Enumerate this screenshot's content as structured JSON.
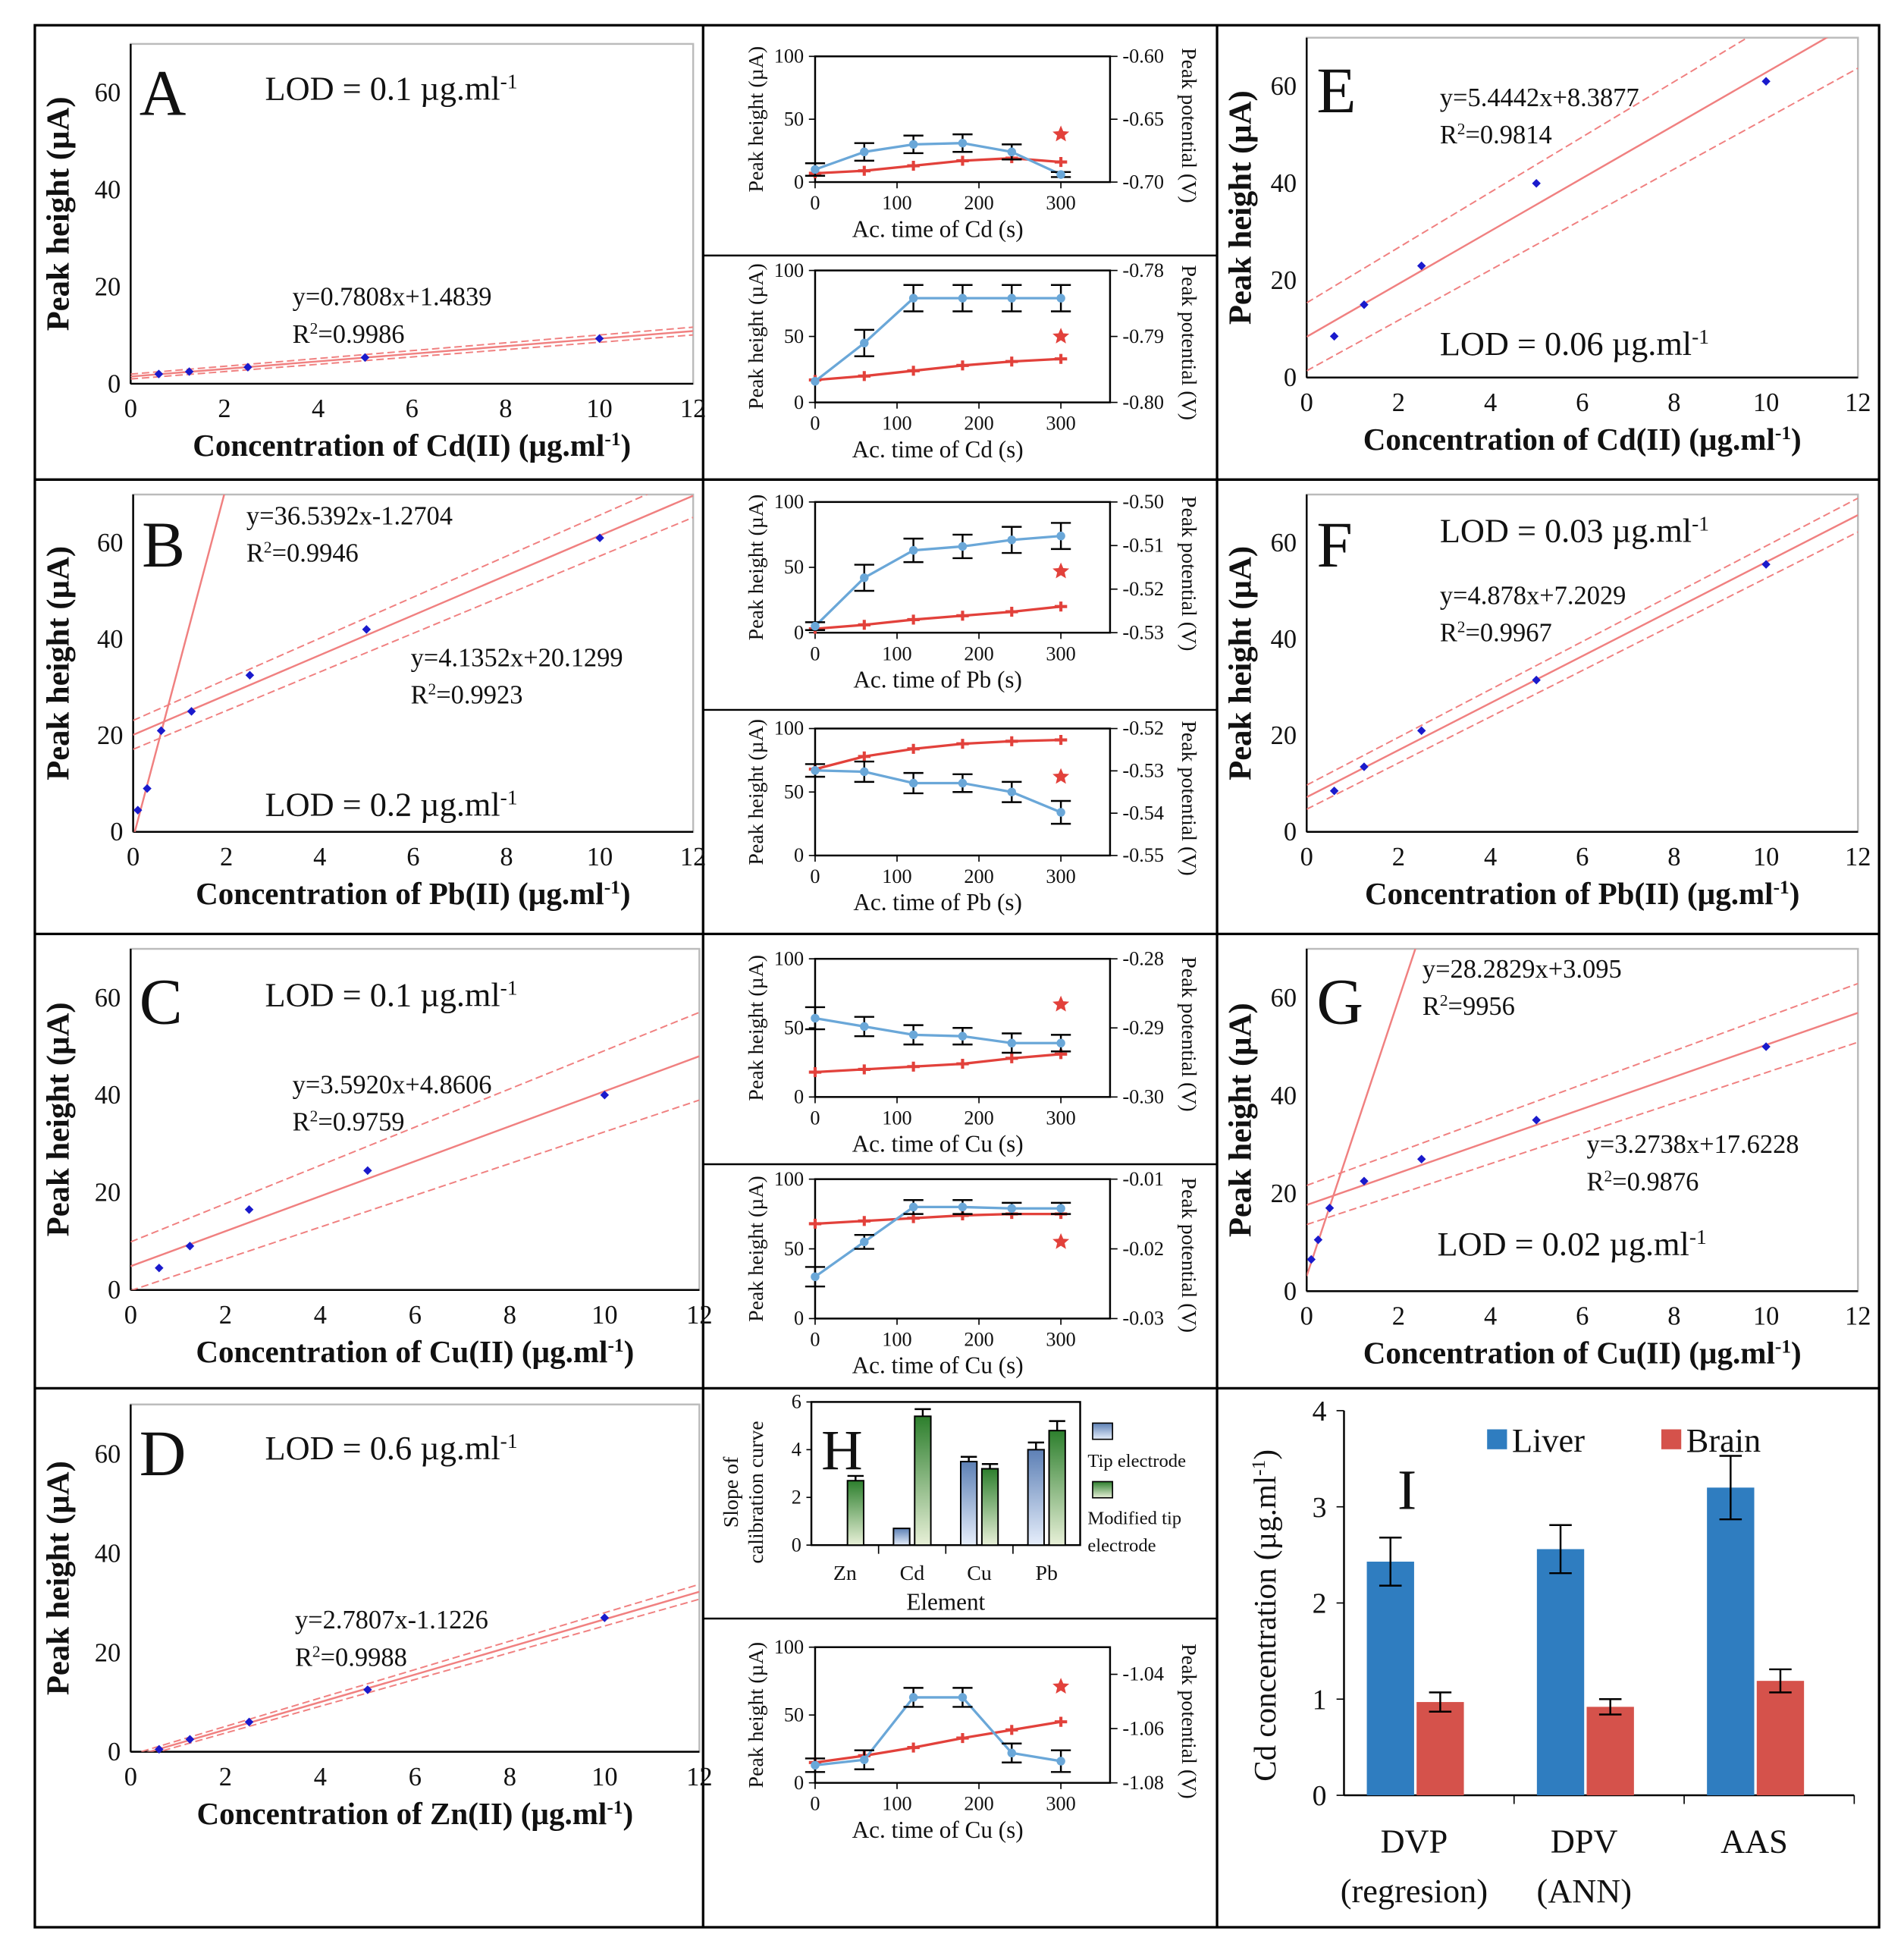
{
  "chart_data": [
    {
      "letter": "A",
      "type": "scatter",
      "xlabel": {
        "pre": "Concentration of Cd(II) (µg.ml",
        "sup": "-1",
        "post": ")"
      },
      "ylabel": "Peak height (µA)",
      "xlim": [
        0,
        12
      ],
      "ylim": [
        0,
        70
      ],
      "xticks": [
        0,
        2,
        4,
        6,
        8,
        10,
        12
      ],
      "yticks": [
        0,
        20,
        40,
        60
      ],
      "points": {
        "x": [
          0.6,
          1.25,
          2.5,
          5,
          10
        ],
        "y": [
          2,
          2.5,
          3.4,
          5.4,
          9.3
        ]
      },
      "fits": [
        {
          "eq": "y=0.7808x+1.4839",
          "r2": "=0.9986",
          "slope": 0.7808,
          "intercept": 1.4839,
          "xrange": [
            0,
            12
          ],
          "band": [
            0.5,
            0.8
          ]
        }
      ],
      "lod": {
        "text": "LOD = 0.1 µg.ml",
        "sup": "-1"
      }
    },
    {
      "letter": "B",
      "type": "scatter",
      "xlabel": {
        "pre": "Concentration of Pb(II) (µg.ml",
        "sup": "-1",
        "post": ")"
      },
      "ylabel": "Peak height (µA)",
      "xlim": [
        0,
        12
      ],
      "ylim": [
        0,
        70
      ],
      "xticks": [
        0,
        2,
        4,
        6,
        8,
        10,
        12
      ],
      "yticks": [
        0,
        20,
        40,
        60
      ],
      "points": {
        "x": [
          0.1,
          0.3,
          0.6,
          1.25,
          2.5,
          5,
          10
        ],
        "y": [
          4.5,
          9,
          21,
          25,
          32.5,
          42,
          61
        ]
      },
      "fits": [
        {
          "eq": "y=36.5392x-1.2704",
          "r2": "=0.9946",
          "slope": 36.5392,
          "intercept": -1.2704,
          "xrange": [
            0,
            2.2
          ],
          "band": null
        },
        {
          "eq": "y=4.1352x+20.1299",
          "r2": "=0.9923",
          "slope": 4.1352,
          "intercept": 20.1299,
          "xrange": [
            0,
            12
          ],
          "band": [
            3,
            4.5
          ]
        }
      ],
      "lod": {
        "text": "LOD = 0.2 µg.ml",
        "sup": "-1"
      }
    },
    {
      "letter": "C",
      "type": "scatter",
      "xlabel": {
        "pre": "Concentration of Cu(II) (µg.ml",
        "sup": "-1",
        "post": ")"
      },
      "ylabel": "Peak height (µA)",
      "xlim": [
        0,
        12
      ],
      "ylim": [
        0,
        70
      ],
      "xticks": [
        0,
        2,
        4,
        6,
        8,
        10,
        12
      ],
      "yticks": [
        0,
        20,
        40,
        60
      ],
      "points": {
        "x": [
          0.6,
          1.25,
          2.5,
          5,
          10
        ],
        "y": [
          4.5,
          9,
          16.5,
          24.5,
          40
        ]
      },
      "fits": [
        {
          "eq": "y=3.5920x+4.8606",
          "r2": "=0.9759",
          "slope": 3.592,
          "intercept": 4.8606,
          "xrange": [
            0,
            12
          ],
          "band": [
            5,
            9
          ]
        }
      ],
      "lod": {
        "text": "LOD = 0.1 µg.ml",
        "sup": "-1"
      }
    },
    {
      "letter": "D",
      "type": "scatter",
      "xlabel": {
        "pre": "Concentration of Zn(II) (µg.ml",
        "sup": "-1",
        "post": ")"
      },
      "ylabel": "Peak height (µA)",
      "xlim": [
        0,
        12
      ],
      "ylim": [
        0,
        70
      ],
      "xticks": [
        0,
        2,
        4,
        6,
        8,
        10,
        12
      ],
      "yticks": [
        0,
        20,
        40,
        60
      ],
      "points": {
        "x": [
          0.6,
          1.25,
          2.5,
          5,
          10
        ],
        "y": [
          0.5,
          2.5,
          6,
          12.5,
          27
        ]
      },
      "fits": [
        {
          "eq": "y=2.7807x-1.1226",
          "r2": "=0.9988",
          "slope": 2.7807,
          "intercept": -1.1226,
          "xrange": [
            0,
            12
          ],
          "band": [
            0.5,
            1.5
          ]
        }
      ],
      "lod": {
        "text": "LOD = 0.6 µg.ml",
        "sup": "-1"
      }
    },
    {
      "letter": "E",
      "type": "scatter",
      "xlabel": {
        "pre": "Concentration of Cd(II) (µg.ml",
        "sup": "-1",
        "post": ")"
      },
      "ylabel": "Peak height (µA)",
      "xlim": [
        0,
        12
      ],
      "ylim": [
        0,
        70
      ],
      "xticks": [
        0,
        2,
        4,
        6,
        8,
        10,
        12
      ],
      "yticks": [
        0,
        20,
        40,
        60
      ],
      "points": {
        "x": [
          0.6,
          1.25,
          2.5,
          5,
          10
        ],
        "y": [
          8.5,
          15,
          23,
          40,
          61
        ]
      },
      "fits": [
        {
          "eq": "y=5.4442x+8.3877",
          "r2": "=0.9814",
          "slope": 5.4442,
          "intercept": 8.3877,
          "xrange": [
            0,
            12
          ],
          "band": [
            7,
            10
          ]
        }
      ],
      "lod": {
        "text": "LOD = 0.06 µg.ml",
        "sup": "-1"
      }
    },
    {
      "letter": "F",
      "type": "scatter",
      "xlabel": {
        "pre": "Concentration of Pb(II) (µg.ml",
        "sup": "-1",
        "post": ")"
      },
      "ylabel": "Peak height (µA)",
      "xlim": [
        0,
        12
      ],
      "ylim": [
        0,
        70
      ],
      "xticks": [
        0,
        2,
        4,
        6,
        8,
        10,
        12
      ],
      "yticks": [
        0,
        20,
        40,
        60
      ],
      "points": {
        "x": [
          0.6,
          1.25,
          2.5,
          5,
          10
        ],
        "y": [
          8.5,
          13.5,
          21,
          31.5,
          55.5
        ]
      },
      "fits": [
        {
          "eq": "y=4.878x+7.2029",
          "r2": "=0.9967",
          "slope": 4.878,
          "intercept": 7.2029,
          "xrange": [
            0,
            12
          ],
          "band": [
            2.5,
            3.5
          ]
        }
      ],
      "lod": {
        "text": "LOD = 0.03 µg.ml",
        "sup": "-1"
      }
    },
    {
      "letter": "G",
      "type": "scatter",
      "xlabel": {
        "pre": "Concentration of Cu(II) (µg.ml",
        "sup": "-1",
        "post": ")"
      },
      "ylabel": "Peak height (µA)",
      "xlim": [
        0,
        12
      ],
      "ylim": [
        0,
        70
      ],
      "xticks": [
        0,
        2,
        4,
        6,
        8,
        10,
        12
      ],
      "yticks": [
        0,
        20,
        40,
        60
      ],
      "points": {
        "x": [
          0.1,
          0.25,
          0.5,
          1.25,
          2.5,
          5,
          10
        ],
        "y": [
          6.5,
          10.5,
          17,
          22.5,
          27,
          35,
          50
        ]
      },
      "fits": [
        {
          "eq": "y=28.2829x+3.095",
          "r2": "=9956",
          "slope": 28.2829,
          "intercept": 3.095,
          "xrange": [
            0,
            2.5
          ],
          "band": null
        },
        {
          "eq": "y=3.2738x+17.6228",
          "r2": "=0.9876",
          "slope": 3.2738,
          "intercept": 17.6228,
          "xrange": [
            0,
            12
          ],
          "band": [
            4,
            6
          ]
        }
      ],
      "lod": {
        "text": "LOD = 0.02 µg.ml",
        "sup": "-1"
      }
    },
    {
      "type": "line",
      "name": "cd-accumulation-1",
      "xlabel": "Ac. time of Cd (s)",
      "ylabel": "Peak height (µA)",
      "y2label": "Peak potential (V)",
      "xlim": [
        0,
        360
      ],
      "ylim": [
        0,
        100
      ],
      "y2lim": [
        -0.7,
        -0.6
      ],
      "xticks": [
        0,
        100,
        200,
        300
      ],
      "yticks": [
        0,
        50,
        100
      ],
      "y2ticks": [
        "-0.60",
        "-0.65",
        "-0.70"
      ],
      "x": [
        0,
        60,
        120,
        180,
        240,
        300
      ],
      "height": {
        "values": [
          10,
          24,
          30,
          31,
          24,
          6
        ],
        "err": [
          5,
          7,
          7,
          7,
          6,
          2
        ]
      },
      "potential": {
        "values": [
          -0.693,
          -0.691,
          -0.687,
          -0.683,
          -0.681,
          -0.684
        ]
      },
      "star": {
        "x": 300,
        "y": 38
      }
    },
    {
      "type": "line",
      "name": "cd-accumulation-2",
      "xlabel": "Ac. time of Cd (s)",
      "ylabel": "Peak height (µA)",
      "y2label": "Peak potential (V)",
      "xlim": [
        0,
        360
      ],
      "ylim": [
        0,
        100
      ],
      "y2lim": [
        -0.8,
        -0.78
      ],
      "xticks": [
        0,
        100,
        200,
        300
      ],
      "yticks": [
        0,
        50,
        100
      ],
      "y2ticks": [
        "-0.78",
        "-0.79",
        "-0.80"
      ],
      "x": [
        0,
        60,
        120,
        180,
        240,
        300
      ],
      "height": {
        "values": [
          16,
          45,
          79,
          79,
          79,
          79
        ],
        "err": [
          0,
          10,
          10,
          10,
          10,
          10
        ]
      },
      "potential": {
        "values": [
          -0.7966,
          -0.796,
          -0.7952,
          -0.7944,
          -0.7938,
          -0.7934
        ]
      },
      "star": {
        "x": 300,
        "y": 50
      }
    },
    {
      "type": "line",
      "name": "pb-accumulation-1",
      "xlabel": "Ac. time of Pb (s)",
      "ylabel": "Peak height (µA)",
      "y2label": "Peak potential (V)",
      "xlim": [
        0,
        360
      ],
      "ylim": [
        0,
        100
      ],
      "y2lim": [
        -0.53,
        -0.5
      ],
      "xticks": [
        0,
        100,
        200,
        300
      ],
      "yticks": [
        0,
        50,
        100
      ],
      "y2ticks": [
        "-0.50",
        "-0.51",
        "-0.52",
        "-0.53"
      ],
      "x": [
        0,
        60,
        120,
        180,
        240,
        300
      ],
      "height": {
        "values": [
          5,
          42,
          63,
          66,
          71,
          74
        ],
        "err": [
          3,
          10,
          9,
          9,
          10,
          10
        ]
      },
      "potential": {
        "values": [
          -0.5291,
          -0.5282,
          -0.527,
          -0.5261,
          -0.5252,
          -0.524
        ]
      },
      "star": {
        "x": 300,
        "y": 47
      }
    },
    {
      "type": "line",
      "name": "pb-accumulation-2",
      "xlabel": "Ac. time of Pb (s)",
      "ylabel": "Peak height (µA)",
      "y2label": "Peak potential (V)",
      "xlim": [
        0,
        360
      ],
      "ylim": [
        0,
        100
      ],
      "y2lim": [
        -0.55,
        -0.52
      ],
      "xticks": [
        0,
        100,
        200,
        300
      ],
      "yticks": [
        0,
        50,
        100
      ],
      "y2ticks": [
        "-0.52",
        "-0.53",
        "-0.54",
        "-0.55"
      ],
      "x": [
        0,
        60,
        120,
        180,
        240,
        300
      ],
      "height": {
        "values": [
          67,
          66,
          57,
          57,
          50,
          34
        ],
        "err": [
          5,
          8,
          8,
          7,
          8,
          9
        ]
      },
      "potential": {
        "values": [
          -0.5296,
          -0.5266,
          -0.5248,
          -0.5236,
          -0.523,
          -0.5227
        ]
      },
      "star": {
        "x": 300,
        "y": 62
      }
    },
    {
      "type": "line",
      "name": "cu-accumulation-1",
      "xlabel": "Ac. time of Cu (s)",
      "ylabel": "Peak height (µA)",
      "y2label": "Peak potential (V)",
      "xlim": [
        0,
        360
      ],
      "ylim": [
        0,
        100
      ],
      "y2lim": [
        -0.3,
        -0.28
      ],
      "xticks": [
        0,
        100,
        200,
        300
      ],
      "yticks": [
        0,
        50,
        100
      ],
      "y2ticks": [
        "-0.28",
        "-0.29",
        "-0.30"
      ],
      "x": [
        0,
        60,
        120,
        180,
        240,
        300
      ],
      "height": {
        "values": [
          57,
          51,
          45,
          44,
          39,
          39
        ],
        "err": [
          8,
          7,
          7,
          6,
          7,
          6
        ]
      },
      "potential": {
        "values": [
          -0.2964,
          -0.296,
          -0.2956,
          -0.2952,
          -0.2944,
          -0.2938
        ]
      },
      "star": {
        "x": 300,
        "y": 67
      }
    },
    {
      "type": "line",
      "name": "cu-accumulation-2",
      "xlabel": "Ac. time of Cu (s)",
      "ylabel": "Peak height (µA)",
      "y2label": "Peak potential (V)",
      "xlim": [
        0,
        360
      ],
      "ylim": [
        0,
        100
      ],
      "y2lim": [
        -0.03,
        -0.01
      ],
      "xticks": [
        0,
        100,
        200,
        300
      ],
      "yticks": [
        0,
        50,
        100
      ],
      "y2ticks": [
        "-0.01",
        "-0.02",
        "-0.03"
      ],
      "x": [
        0,
        60,
        120,
        180,
        240,
        300
      ],
      "height": {
        "values": [
          30,
          55,
          80,
          80,
          79,
          79
        ],
        "err": [
          7,
          5,
          5,
          5,
          4,
          4
        ]
      },
      "potential": {
        "values": [
          -0.0164,
          -0.016,
          -0.0156,
          -0.0152,
          -0.015,
          -0.015
        ]
      },
      "star": {
        "x": 300,
        "y": 55
      }
    },
    {
      "type": "line",
      "name": "zn-accumulation",
      "xlabel": "Ac. time of Cu (s)",
      "ylabel": "Peak height (µA)",
      "y2label": "Peak potential (V)",
      "xlim": [
        0,
        360
      ],
      "ylim": [
        0,
        100
      ],
      "y2lim": [
        -1.08,
        -1.03
      ],
      "xticks": [
        0,
        100,
        200,
        300
      ],
      "yticks": [
        0,
        50,
        100
      ],
      "y2ticks": [
        "-1.04",
        "-1.06",
        "-1.08"
      ],
      "x": [
        0,
        60,
        120,
        180,
        240,
        300
      ],
      "height": {
        "values": [
          13,
          17,
          63,
          63,
          22,
          16
        ],
        "err": [
          5,
          7,
          7,
          7,
          7,
          8
        ]
      },
      "potential": {
        "values": [
          -1.0725,
          -1.07,
          -1.067,
          -1.0635,
          -1.0605,
          -1.0575
        ]
      },
      "star": {
        "x": 300,
        "y": 71
      }
    },
    {
      "letter": "H",
      "type": "bar",
      "xlabel": "Element",
      "ylabel": [
        "Slope of",
        "calibration curve"
      ],
      "ylim": [
        0,
        6
      ],
      "yticks": [
        0,
        2,
        4,
        6
      ],
      "categories": [
        "Zn",
        "Cd",
        "Cu",
        "Pb"
      ],
      "series": [
        {
          "name": "Tip electrode",
          "values": [
            0,
            0.7,
            3.5,
            4.0
          ],
          "err": [
            0,
            0,
            0.2,
            0.3
          ]
        },
        {
          "name": "Modified  tip electrode",
          "values": [
            2.7,
            5.4,
            3.2,
            4.8
          ],
          "err": [
            0.2,
            0.3,
            0.2,
            0.4
          ]
        }
      ]
    },
    {
      "letter": "I",
      "type": "bar",
      "ylabel": {
        "pre": "Cd concentration (µg.ml",
        "sup": "-1",
        "post": ")"
      },
      "ylim": [
        0,
        4
      ],
      "yticks": [
        0,
        1,
        2,
        3,
        4
      ],
      "categories": [
        [
          "DVP",
          "(regresion)"
        ],
        [
          "DPV",
          "(ANN)"
        ],
        [
          "AAS",
          ""
        ]
      ],
      "series": [
        {
          "name": "Liver",
          "color": "#2f7dc0",
          "values": [
            2.43,
            2.56,
            3.2
          ],
          "err": [
            0.25,
            0.25,
            0.33
          ]
        },
        {
          "name": "Brain",
          "color": "#d5524b",
          "values": [
            0.97,
            0.92,
            1.19
          ],
          "err": [
            0.1,
            0.08,
            0.12
          ]
        }
      ]
    }
  ],
  "colors": {
    "height": "#6aa7d8",
    "potential": "#e2413b",
    "fit": "#f08080",
    "point": "#1a1acc",
    "tip": "#a9c3e8",
    "modified": "#3a8a3a"
  }
}
